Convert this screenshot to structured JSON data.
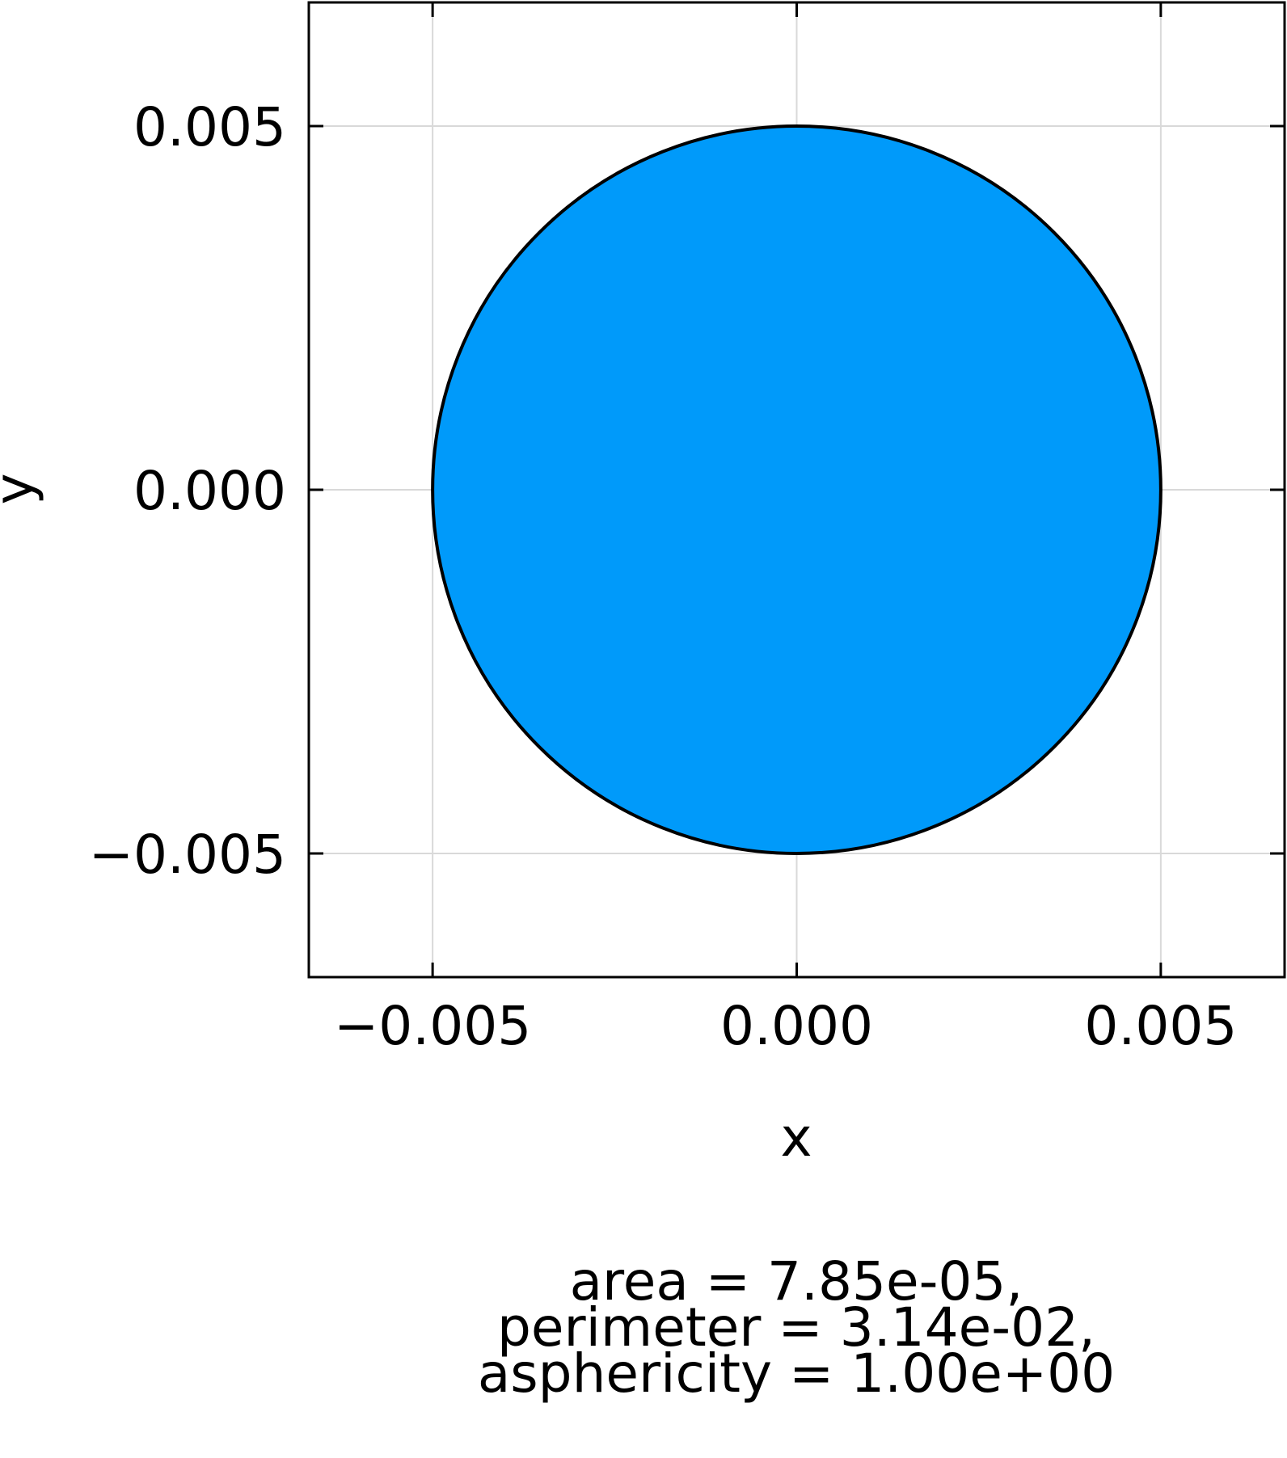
{
  "chart_data": {
    "type": "area",
    "title": "",
    "xlabel": "x",
    "ylabel": "y",
    "xlim": [
      -0.0067,
      0.0067
    ],
    "ylim": [
      -0.0067,
      0.0067
    ],
    "xticks": [
      -0.005,
      0.0,
      0.005
    ],
    "yticks": [
      -0.005,
      0.0,
      0.005
    ],
    "xtick_labels": [
      "−0.005",
      "0.000",
      "0.005"
    ],
    "ytick_labels": [
      "−0.005",
      "0.000",
      "0.005"
    ],
    "grid": true,
    "legend": "none",
    "shape": {
      "kind": "circle",
      "center": [
        0.0,
        0.0
      ],
      "radius": 0.005,
      "fill_color": "#009AFA",
      "stroke_color": "#000000"
    },
    "annotation_lines": [
      "area = 7.85e-05,",
      "perimeter = 3.14e-02,",
      "asphericity = 1.00e+00"
    ]
  },
  "colors": {
    "fill": "#009AFA",
    "grid": "#d9d9d9",
    "axis": "#000000"
  }
}
